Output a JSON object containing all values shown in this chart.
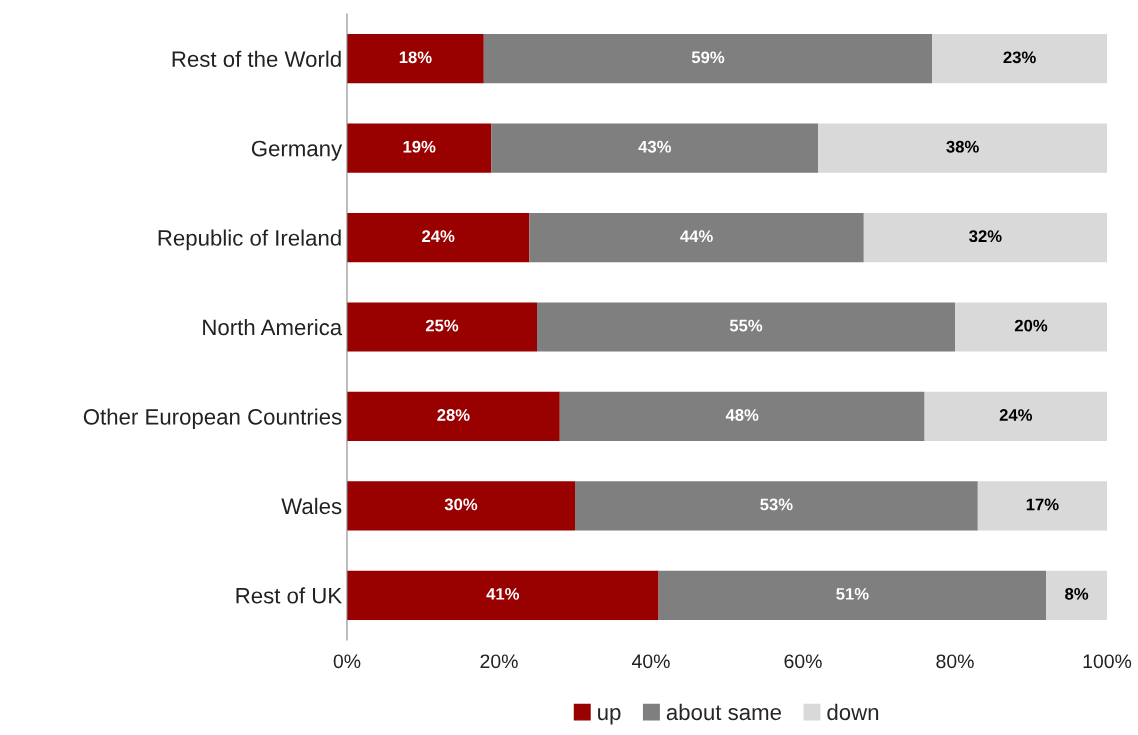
{
  "chart_data": {
    "type": "bar",
    "orientation": "horizontal",
    "stacked": true,
    "categories": [
      "Rest of the World",
      "Germany",
      "Republic of Ireland",
      "North America",
      "Other European Countries",
      "Wales",
      "Rest of UK"
    ],
    "series": [
      {
        "name": "up",
        "color": "#990000",
        "values": [
          18,
          19,
          24,
          25,
          28,
          30,
          41
        ],
        "value_labels": [
          "18%",
          "19%",
          "24%",
          "25%",
          "28%",
          "30%",
          "41%"
        ]
      },
      {
        "name": "about same",
        "color": "#7f7f7f",
        "values": [
          59,
          43,
          44,
          55,
          48,
          53,
          51
        ],
        "value_labels": [
          "59%",
          "43%",
          "44%",
          "55%",
          "48%",
          "53%",
          "51%"
        ]
      },
      {
        "name": "down",
        "color": "#d9d9d9",
        "values": [
          23,
          38,
          32,
          20,
          24,
          17,
          8
        ],
        "value_labels": [
          "23%",
          "38%",
          "32%",
          "20%",
          "24%",
          "17%",
          "8%"
        ]
      }
    ],
    "xlim": [
      0,
      100
    ],
    "xticks": [
      {
        "value": 0,
        "label": "0%"
      },
      {
        "value": 20,
        "label": "20%"
      },
      {
        "value": 40,
        "label": "40%"
      },
      {
        "value": 60,
        "label": "60%"
      },
      {
        "value": 80,
        "label": "80%"
      },
      {
        "value": 100,
        "label": "100%"
      }
    ],
    "grid": false,
    "legend": "bottom"
  }
}
